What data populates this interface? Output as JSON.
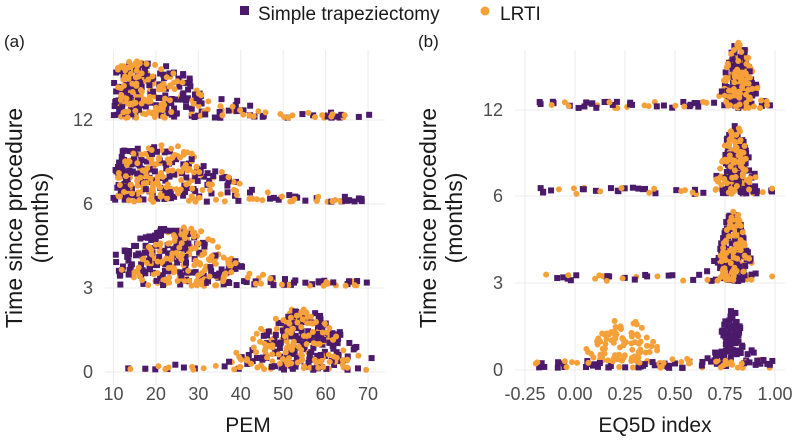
{
  "legend": {
    "series": [
      {
        "name": "Simple trapeziectomy",
        "color": "#4b1a6b",
        "marker": "square"
      },
      {
        "name": "LRTI",
        "color": "#f6a03a",
        "marker": "circle"
      }
    ]
  },
  "chart_data": [
    {
      "panel": "(a)",
      "type": "scatter",
      "xlabel": "PEM",
      "ylabel": "Time since procedure (months)",
      "xlim": [
        8,
        74
      ],
      "xticks": [
        10,
        20,
        30,
        40,
        50,
        60,
        70
      ],
      "yticks": [
        "0",
        "3",
        "6",
        "12"
      ],
      "groups": [
        {
          "time": "0",
          "series": [
            {
              "name": "Simple trapeziectomy",
              "peak": 55,
              "spread": 9,
              "min": 12,
              "max": 72,
              "tail": 0.15
            },
            {
              "name": "LRTI",
              "peak": 53,
              "spread": 9,
              "min": 13,
              "max": 70,
              "tail": 0.12
            }
          ]
        },
        {
          "time": "3",
          "series": [
            {
              "name": "Simple trapeziectomy",
              "peak": 23,
              "spread": 12,
              "min": 10,
              "max": 70,
              "tail": 0.2
            },
            {
              "name": "LRTI",
              "peak": 27,
              "spread": 10,
              "min": 11,
              "max": 68,
              "tail": 0.18
            }
          ]
        },
        {
          "time": "6",
          "series": [
            {
              "name": "Simple trapeziectomy",
              "peak": 18,
              "spread": 14,
              "min": 10,
              "max": 70,
              "tail": 0.25
            },
            {
              "name": "LRTI",
              "peak": 22,
              "spread": 12,
              "min": 11,
              "max": 65,
              "tail": 0.2
            }
          ]
        },
        {
          "time": "12",
          "series": [
            {
              "name": "Simple trapeziectomy",
              "peak": 18,
              "spread": 13,
              "min": 10,
              "max": 72,
              "tail": 0.25
            },
            {
              "name": "LRTI",
              "peak": 16,
              "spread": 12,
              "min": 11,
              "max": 65,
              "tail": 0.2
            }
          ]
        }
      ]
    },
    {
      "panel": "(b)",
      "type": "scatter",
      "xlabel": "EQ5D index",
      "ylabel": "Time since procedure (months)",
      "xlim": [
        -0.3,
        1.05
      ],
      "xticks": [
        "-0.25",
        "0.00",
        "0.25",
        "0.50",
        "0.75",
        "1.00"
      ],
      "yticks": [
        "0",
        "3",
        "6",
        "12"
      ],
      "groups": [
        {
          "time": "0",
          "series": [
            {
              "name": "Simple trapeziectomy",
              "peak": 0.78,
              "spread": 0.06,
              "min": -0.2,
              "max": 1.0,
              "tail": 0.35
            },
            {
              "name": "LRTI",
              "peak": 0.25,
              "spread": 0.12,
              "min": -0.2,
              "max": 1.0,
              "tail": 0.45
            }
          ]
        },
        {
          "time": "3",
          "series": [
            {
              "name": "Simple trapeziectomy",
              "peak": 0.79,
              "spread": 0.06,
              "min": -0.2,
              "max": 1.0,
              "tail": 0.18
            },
            {
              "name": "LRTI",
              "peak": 0.8,
              "spread": 0.05,
              "min": -0.2,
              "max": 1.0,
              "tail": 0.15
            }
          ]
        },
        {
          "time": "6",
          "series": [
            {
              "name": "Simple trapeziectomy",
              "peak": 0.8,
              "spread": 0.06,
              "min": -0.2,
              "max": 1.0,
              "tail": 0.2
            },
            {
              "name": "LRTI",
              "peak": 0.8,
              "spread": 0.06,
              "min": -0.2,
              "max": 1.0,
              "tail": 0.18
            }
          ]
        },
        {
          "time": "12",
          "series": [
            {
              "name": "Simple trapeziectomy",
              "peak": 0.82,
              "spread": 0.06,
              "min": -0.2,
              "max": 1.0,
              "tail": 0.22
            },
            {
              "name": "LRTI",
              "peak": 0.82,
              "spread": 0.06,
              "min": -0.2,
              "max": 1.0,
              "tail": 0.2
            }
          ]
        }
      ]
    }
  ]
}
